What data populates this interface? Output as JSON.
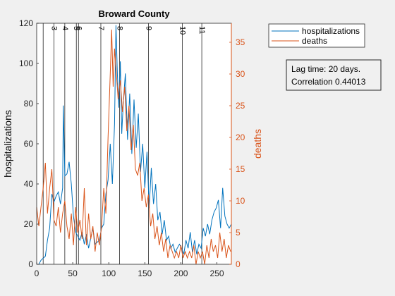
{
  "chart_data": {
    "type": "line",
    "title": "Broward County",
    "xlabel": "",
    "ylabel_left": "hospitalizations",
    "ylabel_right": "deaths",
    "xlim": [
      0,
      270
    ],
    "ylim_left": [
      0,
      120
    ],
    "ylim_right": [
      0,
      38
    ],
    "xticks": [
      "0",
      "50",
      "100",
      "150",
      "200",
      "250"
    ],
    "yticks_left": [
      "0",
      "20",
      "40",
      "60",
      "80",
      "100",
      "120"
    ],
    "yticks_right": [
      "0",
      "5",
      "10",
      "15",
      "20",
      "25",
      "30",
      "35"
    ],
    "legend_position": "outside-top-right",
    "legend": [
      "hospitalizations",
      "deaths"
    ],
    "annotation": [
      "Lag time: 20 days.",
      "Correlation 0.44013"
    ],
    "colors": {
      "hospitalizations": "#0072bd",
      "deaths": "#d95319",
      "axes": "#262626"
    },
    "vlines": [
      {
        "x": 9,
        "label": ""
      },
      {
        "x": 24,
        "label": "3"
      },
      {
        "x": 39,
        "label": "4"
      },
      {
        "x": 55,
        "label": "5"
      },
      {
        "x": 58,
        "label": "6"
      },
      {
        "x": 89,
        "label": "7"
      },
      {
        "x": 115,
        "label": "8"
      },
      {
        "x": 155,
        "label": "9"
      },
      {
        "x": 202,
        "label": "10"
      },
      {
        "x": 229,
        "label": "11"
      }
    ],
    "series": [
      {
        "name": "hospitalizations",
        "axis": "left",
        "x": [
          0,
          3,
          6,
          9,
          12,
          15,
          18,
          21,
          24,
          27,
          30,
          33,
          36,
          37,
          39,
          42,
          45,
          48,
          51,
          54,
          57,
          60,
          63,
          66,
          69,
          72,
          75,
          78,
          81,
          84,
          87,
          90,
          93,
          96,
          99,
          102,
          105,
          108,
          110,
          112,
          114,
          116,
          118,
          120,
          123,
          126,
          129,
          132,
          135,
          138,
          141,
          144,
          147,
          150,
          153,
          156,
          159,
          162,
          165,
          168,
          171,
          174,
          177,
          180,
          183,
          186,
          189,
          192,
          195,
          198,
          201,
          204,
          207,
          210,
          213,
          216,
          219,
          222,
          225,
          228,
          231,
          234,
          237,
          240,
          243,
          246,
          249,
          252,
          255,
          258,
          261,
          264,
          267,
          270
        ],
        "values": [
          0,
          0,
          2,
          3,
          4,
          12,
          18,
          35,
          31,
          34,
          36,
          30,
          38,
          79,
          44,
          45,
          51,
          40,
          24,
          16,
          14,
          12,
          16,
          10,
          15,
          8,
          13,
          18,
          10,
          11,
          12,
          18,
          20,
          35,
          42,
          60,
          40,
          70,
          119,
          94,
          78,
          101,
          65,
          80,
          95,
          62,
          85,
          55,
          82,
          58,
          75,
          46,
          60,
          38,
          56,
          28,
          48,
          30,
          40,
          22,
          26,
          15,
          22,
          12,
          14,
          8,
          10,
          6,
          8,
          10,
          8,
          5,
          12,
          8,
          16,
          6,
          12,
          5,
          10,
          8,
          18,
          14,
          20,
          15,
          22,
          26,
          28,
          32,
          18,
          38,
          24,
          20,
          18,
          20
        ]
      },
      {
        "name": "deaths",
        "axis": "right",
        "x": [
          0,
          3,
          6,
          9,
          12,
          15,
          18,
          21,
          24,
          27,
          30,
          33,
          36,
          39,
          42,
          45,
          48,
          51,
          54,
          57,
          60,
          63,
          66,
          69,
          72,
          75,
          78,
          81,
          84,
          87,
          90,
          93,
          96,
          99,
          102,
          104,
          106,
          108,
          110,
          113,
          116,
          119,
          122,
          125,
          128,
          131,
          134,
          137,
          140,
          143,
          146,
          149,
          152,
          155,
          158,
          161,
          164,
          167,
          170,
          173,
          176,
          179,
          182,
          185,
          188,
          191,
          194,
          197,
          200,
          203,
          206,
          209,
          212,
          215,
          218,
          221,
          224,
          227,
          230,
          233,
          236,
          239,
          242,
          245,
          248,
          251,
          254,
          257,
          260,
          263,
          266,
          269
        ],
        "values": [
          9,
          6,
          9,
          12,
          16,
          8,
          12,
          15,
          7,
          6,
          9,
          5,
          8,
          10,
          6,
          4,
          8,
          3,
          9,
          5,
          7,
          4,
          12,
          3,
          8,
          4,
          6,
          2,
          5,
          3,
          6,
          12,
          8,
          20,
          30,
          37,
          28,
          34,
          31,
          26,
          29,
          24,
          28,
          21,
          25,
          18,
          22,
          15,
          14,
          16,
          10,
          12,
          9,
          11,
          6,
          8,
          4,
          6,
          3,
          5,
          2,
          4,
          1,
          3,
          2,
          1,
          2,
          1,
          3,
          1,
          2,
          1,
          2,
          1,
          3,
          0,
          2,
          1,
          2,
          0,
          3,
          1,
          4,
          2,
          3,
          1,
          5,
          2,
          4,
          1,
          3,
          2
        ]
      }
    ]
  }
}
